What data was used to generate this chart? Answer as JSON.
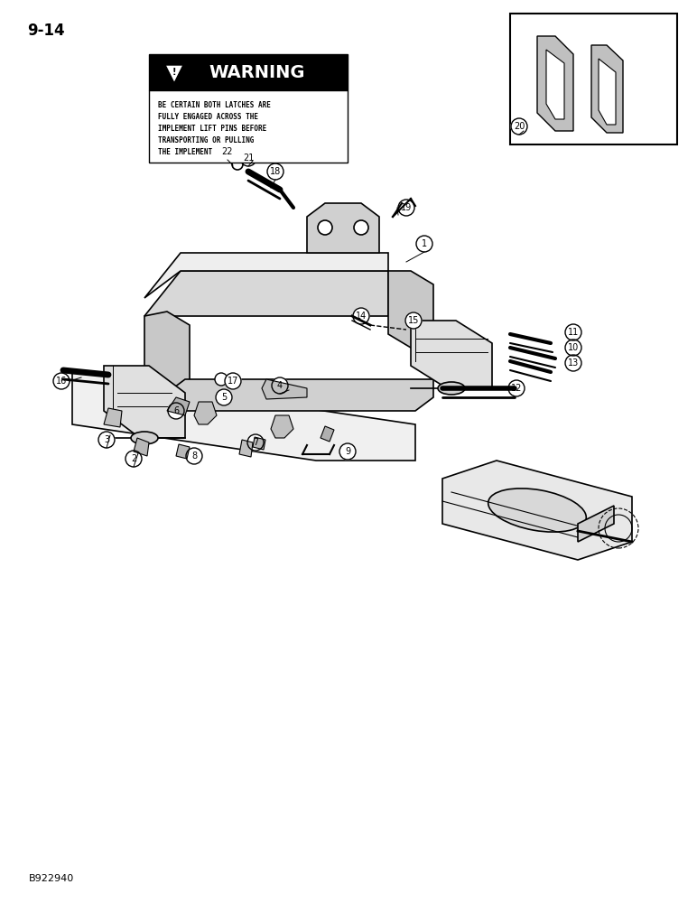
{
  "page_number": "9-14",
  "part_number": "B922940",
  "background_color": "#ffffff",
  "warning_text_line1": "BE CERTAIN BOTH LATCHES ARE",
  "warning_text_line2": "FULLY ENGAGED ACROSS THE",
  "warning_text_line3": "IMPLEMENT LIFT PINS BEFORE",
  "warning_text_line4": "TRANSPORTING OR PULLING",
  "warning_text_line5": "THE IMPLEMENT",
  "part_labels": [
    1,
    2,
    3,
    4,
    5,
    6,
    7,
    8,
    9,
    10,
    11,
    12,
    13,
    14,
    15,
    16,
    17,
    18,
    19,
    20,
    21,
    22
  ]
}
